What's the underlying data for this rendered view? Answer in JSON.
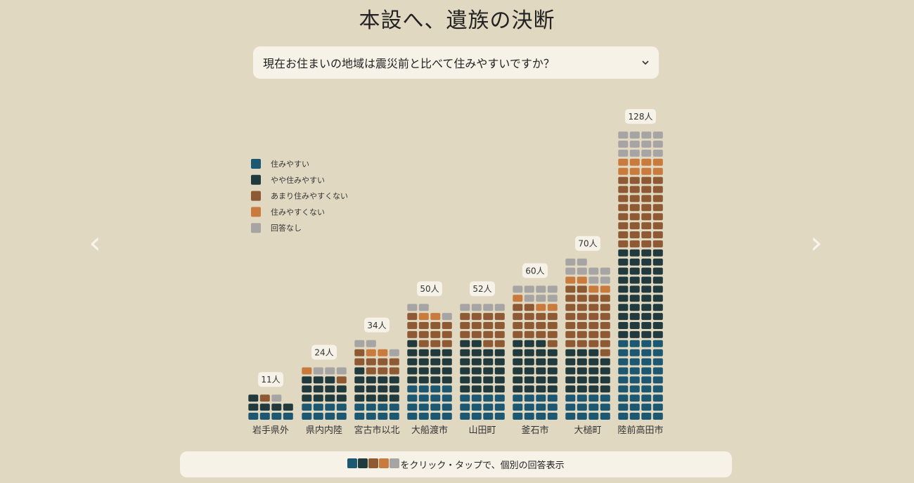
{
  "title": "本設へ、遺族の決断",
  "question": {
    "value": "現在お住まいの地域は震災前と比べて住みやすいですか？",
    "chevron_icon": "chevron-down-icon"
  },
  "nav": {
    "prev_icon": "chevron-left-icon",
    "next_icon": "chevron-right-icon",
    "prev_glyph": "‹",
    "next_glyph": "›"
  },
  "footer": {
    "text": "をクリック・タップで、個別の回答表示"
  },
  "chart_data": {
    "type": "bar",
    "subtype": "stacked-waffle",
    "categories": [
      "岩手県外",
      "県内内陸",
      "宮古市以北",
      "大船渡市",
      "山田町",
      "釜石市",
      "大槌町",
      "陸前高田市"
    ],
    "totals": [
      11,
      24,
      34,
      50,
      52,
      60,
      70,
      128
    ],
    "total_labels": [
      "11人",
      "24人",
      "34人",
      "50人",
      "52人",
      "60人",
      "70人",
      "128人"
    ],
    "series": [
      {
        "name": "住みやすい",
        "color": "#1d5873",
        "values": [
          4,
          8,
          8,
          16,
          12,
          12,
          12,
          36
        ]
      },
      {
        "name": "やや住みやすい",
        "color": "#213a3d",
        "values": [
          5,
          11,
          13,
          17,
          22,
          23,
          19,
          40
        ]
      },
      {
        "name": "あまり住みやすくない",
        "color": "#8d5a34",
        "values": [
          1,
          1,
          8,
          12,
          14,
          15,
          27,
          32
        ]
      },
      {
        "name": "住みやすくない",
        "color": "#c97b3d",
        "values": [
          0,
          1,
          2,
          2,
          0,
          3,
          4,
          8
        ]
      },
      {
        "name": "回答なし",
        "color": "#a7a5a3",
        "values": [
          1,
          3,
          3,
          3,
          4,
          7,
          8,
          12
        ]
      }
    ],
    "legend_position": "left",
    "grid": false
  }
}
